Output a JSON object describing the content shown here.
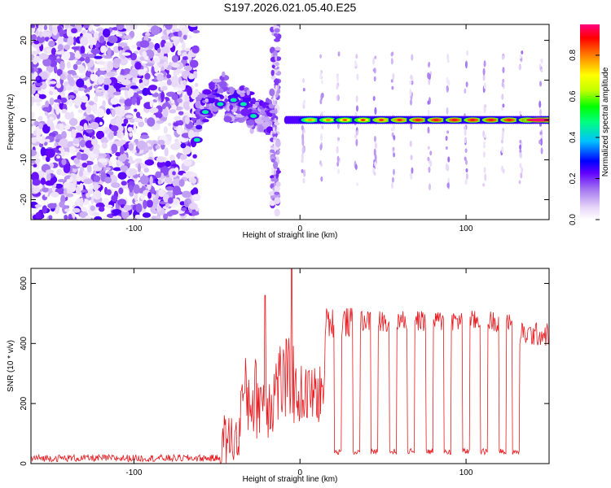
{
  "chart_data": [
    {
      "type": "heatmap",
      "title": "S197.2026.021.05.40.E25",
      "xlabel": "Height of straight line (km)",
      "ylabel": "Frequency (Hz)",
      "xlim": [
        -162,
        150
      ],
      "ylim": [
        -25,
        24
      ],
      "x_ticks": [
        -100,
        0,
        100
      ],
      "y_ticks": [
        -20,
        -10,
        0,
        10,
        20
      ],
      "colorbar": {
        "label": "Normalized spectral amplitude",
        "range": [
          0.0,
          0.95
        ],
        "ticks": [
          0.0,
          0.2,
          0.4,
          0.6,
          0.8
        ],
        "colormap": [
          "#ffffff",
          "#e8d8f8",
          "#a070f0",
          "#6000ff",
          "#0000ff",
          "#00c0ff",
          "#00ff80",
          "#00ff00",
          "#c0ff00",
          "#ffff00",
          "#ff8000",
          "#ff0000",
          "#ff0080"
        ]
      },
      "description_values": {
        "noise_region_km": [
          -162,
          -62
        ],
        "transition_region_km": [
          -62,
          -15
        ],
        "tone_frequency_hz": 0,
        "tone_onset_km": -8,
        "pulse_centers_km": [
          -15,
          2,
          13,
          23,
          34,
          45,
          56,
          67,
          78,
          89,
          100,
          111,
          122,
          133,
          145
        ],
        "peak_amplitude": 0.95
      }
    },
    {
      "type": "line",
      "xlabel": "Height of straight line (km)",
      "ylabel": "SNR (10 * v/v)",
      "xlim": [
        -162,
        150
      ],
      "ylim": [
        0,
        650
      ],
      "x_ticks": [
        -100,
        0,
        100
      ],
      "y_ticks": [
        0,
        200,
        400,
        600
      ],
      "series": [
        {
          "name": "SNR",
          "color": "#e8191e",
          "segments": [
            {
              "x_range": [
                -162,
                -48
              ],
              "level": 18,
              "noise": 12
            },
            {
              "x_range": [
                -48,
                -36
              ],
              "level": 80,
              "noise": 90
            },
            {
              "x_range": [
                -36,
                -15
              ],
              "level": 220,
              "noise": 140
            },
            {
              "x_range": [
                -15,
                -3
              ],
              "level": 270,
              "noise": 150
            },
            {
              "x_range": [
                -3,
                15
              ],
              "level": 230,
              "noise": 100
            },
            {
              "x_range": [
                15,
                35
              ],
              "level": 470,
              "noise": 50
            },
            {
              "x_range": [
                35,
                130
              ],
              "level": 475,
              "noise": 35
            },
            {
              "x_range": [
                130,
                150
              ],
              "level": 430,
              "noise": 40
            }
          ],
          "spikes": [
            {
              "x": -5,
              "value": 650
            },
            {
              "x": -21,
              "value": 560
            }
          ],
          "dropout_centers_km": [
            13,
            23,
            34,
            45,
            56,
            67,
            78,
            89,
            100,
            111,
            122,
            130
          ],
          "dropout_level": 40
        }
      ]
    }
  ]
}
